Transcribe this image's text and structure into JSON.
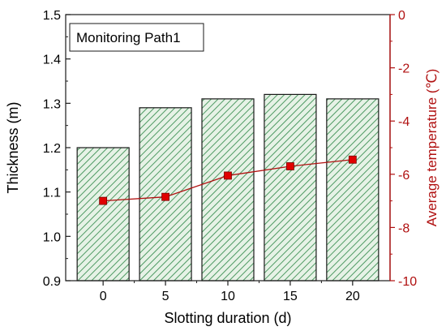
{
  "chart_data": {
    "type": "bar",
    "legend_box": "Monitoring Path1",
    "categories": [
      "0",
      "5",
      "10",
      "15",
      "20"
    ],
    "x": [
      0,
      5,
      10,
      15,
      20
    ],
    "xlabel": "Slotting duration (d)",
    "series": [
      {
        "axis": "left",
        "kind": "bar",
        "values": [
          1.2,
          1.29,
          1.31,
          1.32,
          1.31
        ]
      },
      {
        "axis": "right",
        "kind": "line",
        "values": [
          -7.0,
          -6.85,
          -6.05,
          -5.7,
          -5.45
        ]
      }
    ],
    "ylabel_left": "Thickness (m)",
    "ylim_left": [
      0.9,
      1.5
    ],
    "yticks_left": [
      "0.9",
      "1.0",
      "1.1",
      "1.2",
      "1.3",
      "1.4",
      "1.5"
    ],
    "ylabel_right": "Average temperature (℃)",
    "ylim_right": [
      -10,
      0
    ],
    "yticks_right": [
      "-10",
      "-8",
      "-6",
      "-4",
      "-2",
      "0"
    ],
    "colors": {
      "bar_fill": "#e6f2e6",
      "bar_hatch": "#4e9a63",
      "bar_edge": "#1a1a1a",
      "line": "#b01010",
      "marker": "#e00000",
      "right_axis": "#b01010"
    },
    "grid": false
  }
}
